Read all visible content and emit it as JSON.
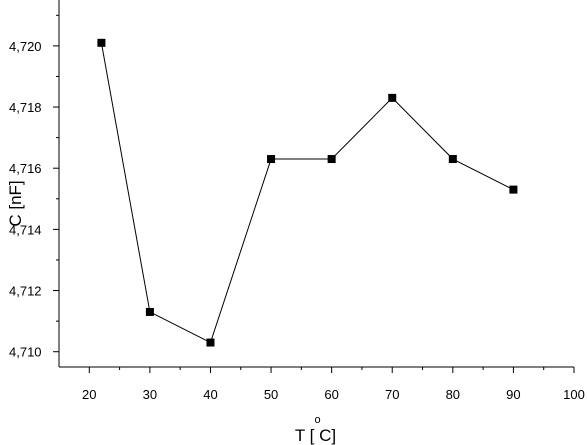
{
  "chart_data": {
    "type": "line",
    "title": "",
    "xlabel": "T [ C]",
    "xlabel_degree": "o",
    "ylabel": "C [nF]",
    "xlim": [
      15,
      100
    ],
    "ylim": [
      4.7095,
      4.7215
    ],
    "grid": false,
    "legend": "none",
    "marker": "square",
    "x_ticks": [
      20,
      30,
      40,
      50,
      60,
      70,
      80,
      90,
      100
    ],
    "x_tick_labels": [
      "20",
      "30",
      "40",
      "50",
      "60",
      "70",
      "80",
      "90",
      "100"
    ],
    "y_ticks": [
      4.71,
      4.712,
      4.714,
      4.716,
      4.718,
      4.72
    ],
    "y_tick_labels": [
      "4,710",
      "4,712",
      "4,714",
      "4,716",
      "4,718",
      "4,720"
    ],
    "series": [
      {
        "x": [
          22,
          30,
          40,
          50,
          60,
          70,
          80,
          90
        ],
        "y": [
          4.7201,
          4.7113,
          4.7103,
          4.7163,
          4.7163,
          4.7183,
          4.7163,
          4.7153
        ]
      }
    ],
    "colors": {
      "line": "#000000",
      "marker": "#000000",
      "axis": "#000000"
    }
  }
}
